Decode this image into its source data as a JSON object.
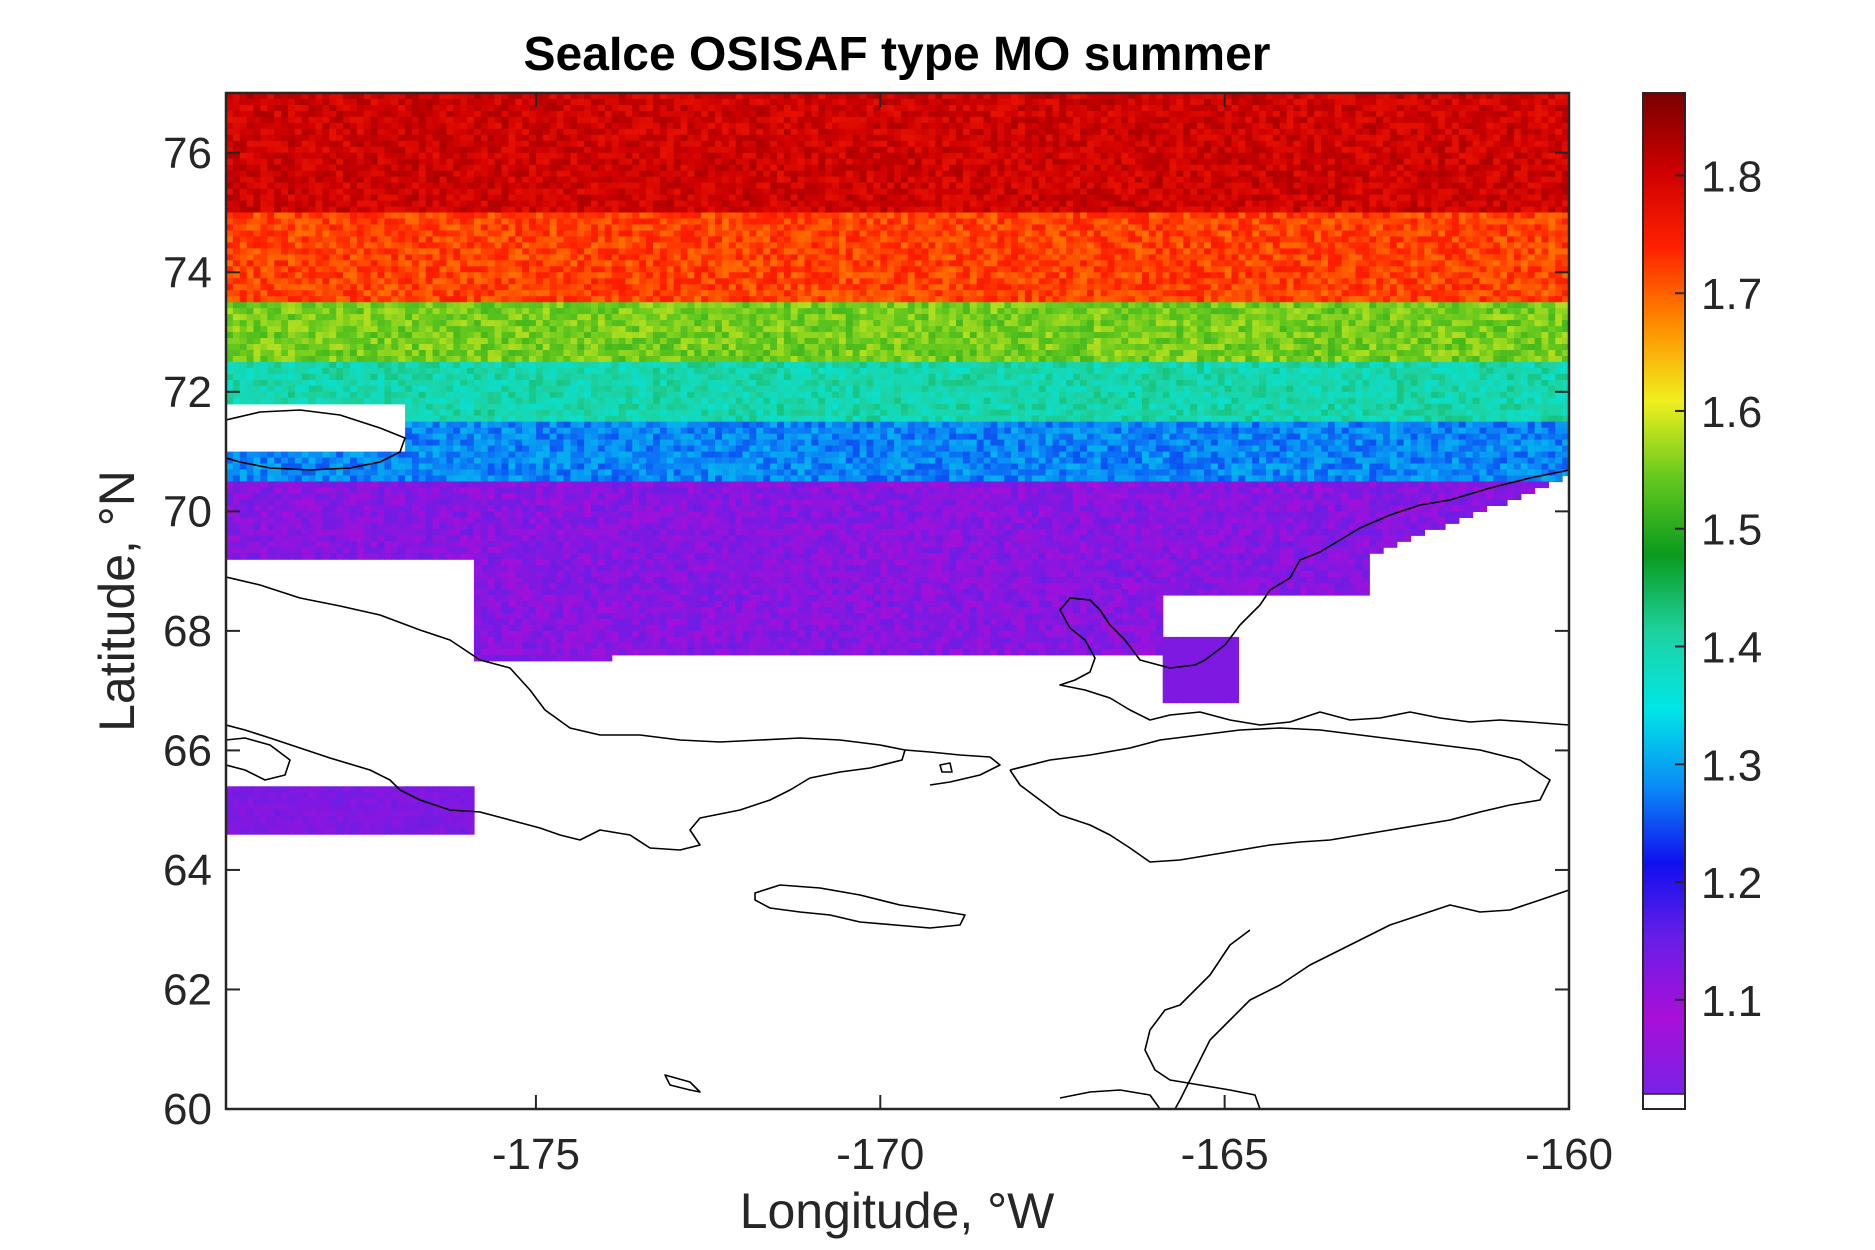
{
  "chart_data": {
    "type": "heatmap",
    "title": "SeaIce OSISAF type MO summer",
    "xlabel": "Longitude, °W",
    "ylabel": "Latitude, °N",
    "xlim": [
      -179.5,
      -160
    ],
    "ylim": [
      60,
      77
    ],
    "xticks": [
      -175,
      -170,
      -165,
      -160
    ],
    "yticks": [
      60,
      62,
      64,
      66,
      68,
      70,
      72,
      74,
      76
    ],
    "colorbar": {
      "range": [
        1.02,
        1.87
      ],
      "ticks": [
        1.1,
        1.2,
        1.3,
        1.4,
        1.5,
        1.6,
        1.7,
        1.8
      ],
      "colormap": [
        "#7a22e6",
        "#a80fd8",
        "#6a1ee6",
        "#1010f0",
        "#0a8cf5",
        "#00e6e6",
        "#1ed2a0",
        "#0a9b1e",
        "#64c81e",
        "#f0f01e",
        "#ff8c00",
        "#ff2000",
        "#cc0000",
        "#7a0000"
      ],
      "missing_color": "#ffffff"
    },
    "latitude_bands": [
      {
        "lat_range": [
          75.0,
          77.0
        ],
        "value_approx": 1.8
      },
      {
        "lat_range": [
          73.5,
          75.0
        ],
        "value_approx": 1.72
      },
      {
        "lat_range": [
          72.5,
          73.5
        ],
        "value_approx": 1.55
      },
      {
        "lat_range": [
          71.5,
          72.5
        ],
        "value_approx": 1.4
      },
      {
        "lat_range": [
          70.5,
          71.5
        ],
        "value_approx": 1.28
      },
      {
        "lat_range": [
          67.2,
          70.5
        ],
        "value_approx": 1.12
      }
    ],
    "grid": false,
    "colors": {
      "axis": "#262626",
      "coastline": "#000000",
      "land": "#ffffff"
    }
  }
}
